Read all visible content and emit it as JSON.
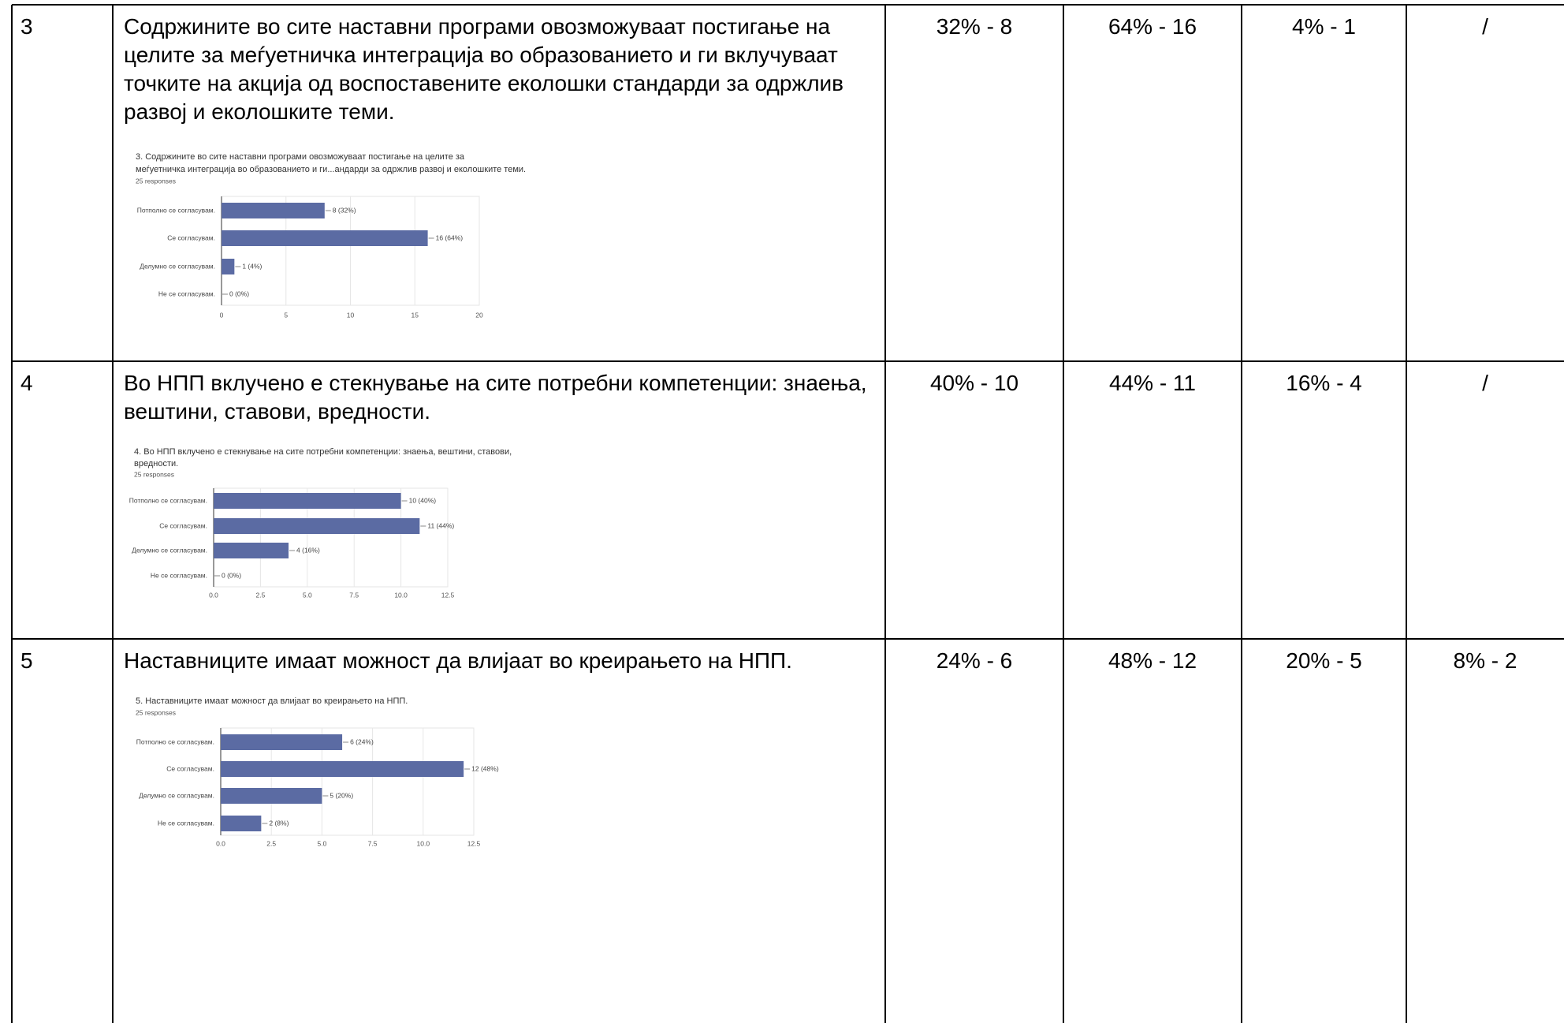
{
  "rows": [
    {
      "number": "3",
      "text": "Содржините во сите наставни програми овозможуваат постигање на целите за меѓуетничка интеграција во образованието и ги вклучуваат точките на акција од воспоставените еколошки стандарди за одржлив развој и еколошките теми.",
      "chart": {
        "type": "bar",
        "title": [
          "3. Содржините во сите наставни програми овозможуваат постигање на целите за",
          "меѓуетничка интеграција во образованието и ги...андарди за одржлив развој и еколошките теми."
        ],
        "subtitle": "25 responses",
        "categories": [
          "Потполно се согласувам.",
          "Се согласувам.",
          "Делумно се согласувам.",
          "Не се согласувам."
        ],
        "values": [
          8,
          16,
          1,
          0
        ],
        "value_labels": [
          "8 (32%)",
          "16 (64%)",
          "1 (4%)",
          "0 (0%)"
        ],
        "color": "#5b6ba3",
        "xlim": [
          0,
          20
        ],
        "xticks": [
          0,
          5,
          10,
          15,
          20
        ],
        "grid": true
      },
      "cells": [
        "32% - 8",
        "64% - 16",
        "4% - 1",
        "/"
      ]
    },
    {
      "number": "4",
      "text": "Во НПП вклучено е стекнување на сите потребни компетенции: знаења, вештини, ставови, вредности.",
      "chart": {
        "type": "bar",
        "title": [
          "4. Во НПП вклучено е стекнување на сите потребни компетенции: знаења, вештини, ставови,",
          "вредности."
        ],
        "subtitle": "25 responses",
        "categories": [
          "Потполно се согласувам.",
          "Се согласувам.",
          "Делумно се согласувам.",
          "Не се согласувам."
        ],
        "values": [
          10,
          11,
          4,
          0
        ],
        "value_labels": [
          "10 (40%)",
          "11 (44%)",
          "4 (16%)",
          "0 (0%)"
        ],
        "color": "#5b6ba3",
        "xlim": [
          0,
          12.5
        ],
        "xticks": [
          {
            "value": 0,
            "label": "0.0"
          },
          {
            "value": 2.5,
            "label": "2.5"
          },
          {
            "value": 5,
            "label": "5.0"
          },
          {
            "value": 7.5,
            "label": "7.5"
          },
          {
            "value": 10,
            "label": "10.0"
          },
          {
            "value": 12.5,
            "label": "12.5"
          }
        ],
        "grid": true
      },
      "cells": [
        "40% - 10",
        "44% - 11",
        "16% - 4",
        "/"
      ]
    },
    {
      "number": "5",
      "text": "Наставниците имаат можност да влијаат во креирањето на НПП.",
      "chart": {
        "type": "bar",
        "title": [
          "5.  Наставниците имаат можност да влијаат во креирањето на НПП."
        ],
        "subtitle": "25 responses",
        "categories": [
          "Потполно се согласувам.",
          "Се согласувам.",
          "Делумно се согласувам.",
          "Не се согласувам."
        ],
        "values": [
          6,
          12,
          5,
          2
        ],
        "value_labels": [
          "6 (24%)",
          "12 (48%)",
          "5 (20%)",
          "2 (8%)"
        ],
        "color": "#5b6ba3",
        "xlim": [
          0,
          12.5
        ],
        "xticks": [
          {
            "value": 0,
            "label": "0.0"
          },
          {
            "value": 2.5,
            "label": "2.5"
          },
          {
            "value": 5,
            "label": "5.0"
          },
          {
            "value": 7.5,
            "label": "7.5"
          },
          {
            "value": 10,
            "label": "10.0"
          },
          {
            "value": 12.5,
            "label": "12.5"
          }
        ],
        "grid": true
      },
      "cells": [
        "24% - 6",
        "48% - 12",
        "20% - 5",
        "8% - 2"
      ]
    }
  ]
}
